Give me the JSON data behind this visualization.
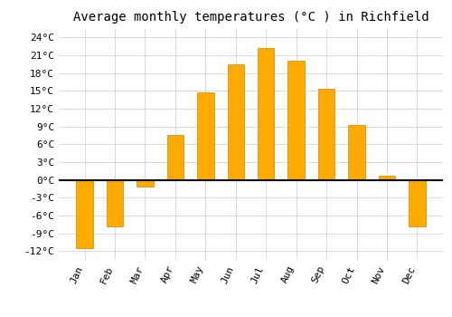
{
  "title": "Average monthly temperatures (°C ) in Richfield",
  "months": [
    "Jan",
    "Feb",
    "Mar",
    "Apr",
    "May",
    "Jun",
    "Jul",
    "Aug",
    "Sep",
    "Oct",
    "Nov",
    "Dec"
  ],
  "values": [
    -11.5,
    -7.8,
    -1.2,
    7.5,
    14.7,
    19.5,
    22.2,
    20.1,
    15.3,
    9.3,
    0.7,
    -7.8
  ],
  "bar_color": "#FFAA00",
  "bar_edge_color": "#CC8800",
  "ylim": [
    -13.5,
    25.5
  ],
  "yticks": [
    -12,
    -9,
    -6,
    -3,
    0,
    3,
    6,
    9,
    12,
    15,
    18,
    21,
    24
  ],
  "background_color": "#ffffff",
  "grid_color": "#cccccc",
  "title_fontsize": 10,
  "tick_fontsize": 8,
  "font_family": "monospace"
}
